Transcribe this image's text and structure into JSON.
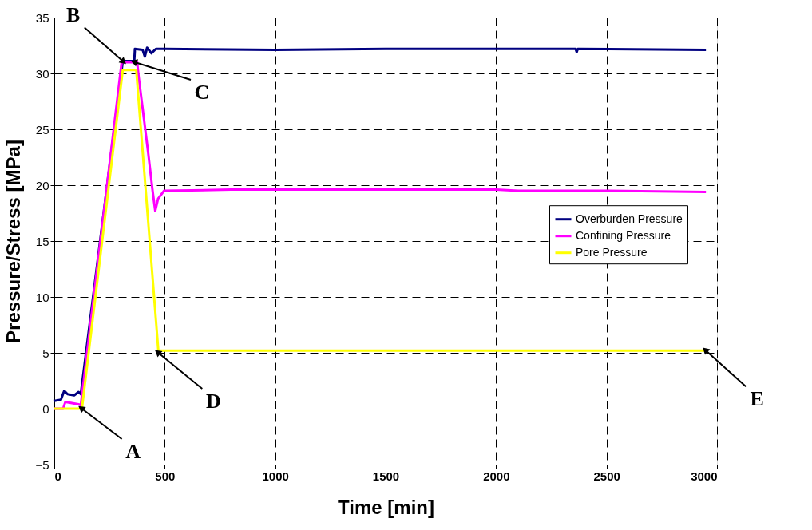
{
  "chart_data": {
    "type": "line",
    "xlabel": "Time [min]",
    "ylabel": "Pressure/Stress [MPa]",
    "xlim": [
      0,
      3000
    ],
    "xticks": [
      0,
      500,
      1000,
      1500,
      2000,
      2500,
      3000
    ],
    "ylim": [
      -5,
      35
    ],
    "yticks": [
      -5,
      0,
      5,
      10,
      15,
      20,
      25,
      30,
      35
    ],
    "grid": true,
    "legend": "right",
    "line_style": "solid",
    "series": [
      {
        "name": "Overburden Pressure",
        "color": "#000080",
        "x": [
          0,
          30,
          45,
          60,
          90,
          110,
          120,
          310,
          362,
          365,
          400,
          410,
          420,
          440,
          460,
          500,
          1000,
          1500,
          2000,
          2360,
          2365,
          2370,
          2950
        ],
        "values": [
          0.7,
          0.8,
          1.6,
          1.3,
          1.2,
          1.5,
          1.3,
          31.1,
          31.1,
          32.2,
          32.1,
          31.5,
          32.3,
          31.8,
          32.2,
          32.2,
          32.1,
          32.2,
          32.2,
          32.2,
          31.9,
          32.2,
          32.1
        ]
      },
      {
        "name": "Confining Pressure",
        "color": "#ff00ff",
        "x": [
          0,
          40,
          50,
          110,
          120,
          305,
          375,
          382,
          425,
          445,
          457,
          470,
          497,
          800,
          2000,
          2100,
          2500,
          2950
        ],
        "values": [
          0,
          0,
          0.6,
          0.4,
          0.3,
          31.0,
          31.0,
          29.7,
          22.9,
          19.5,
          17.7,
          18.8,
          19.5,
          19.6,
          19.6,
          19.5,
          19.5,
          19.4
        ]
      },
      {
        "name": "Pore Pressure",
        "color": "#ffff00",
        "x": [
          0,
          125,
          310,
          371,
          471,
          2950
        ],
        "values": [
          0,
          0,
          30.3,
          30.3,
          5.2,
          5.2
        ]
      }
    ],
    "annotations": [
      {
        "text": "A",
        "x": 125,
        "y": 0
      },
      {
        "text": "B",
        "x": 310,
        "y": 31.1
      },
      {
        "text": "C",
        "x": 365,
        "y": 31
      },
      {
        "text": "D",
        "x": 471,
        "y": 5
      },
      {
        "text": "E",
        "x": 2950,
        "y": 5.2
      }
    ]
  }
}
